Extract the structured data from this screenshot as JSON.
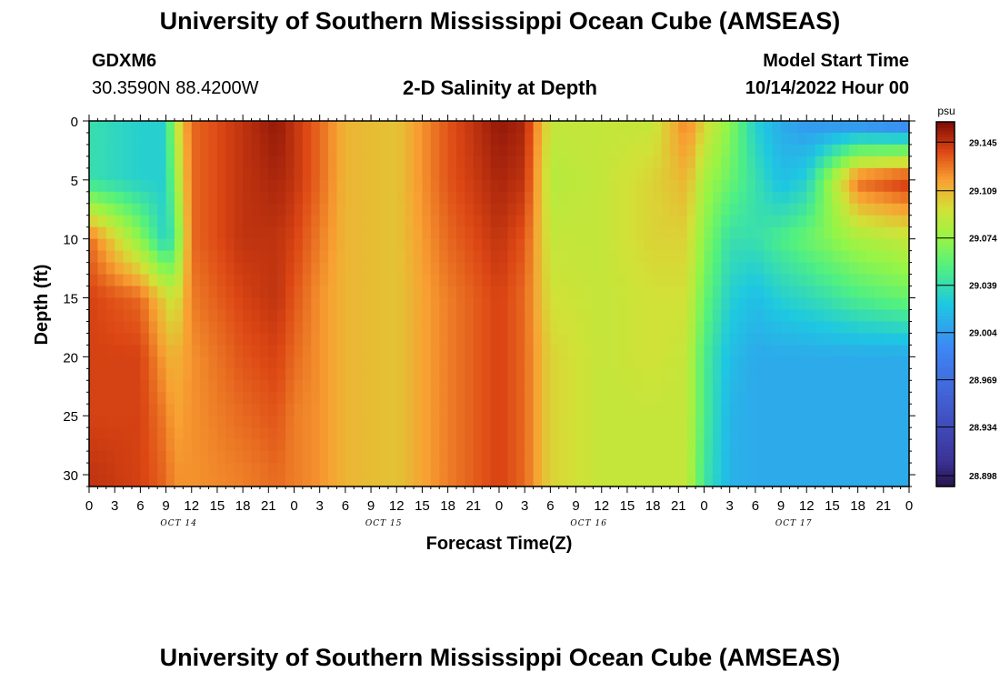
{
  "header": {
    "title": "University of Southern Mississippi Ocean Cube (AMSEAS)",
    "station": "GDXM6",
    "coords": "30.3590N  88.4200W",
    "plot_title": "2-D Salinity at Depth",
    "model_label": "Model Start Time",
    "model_time": "10/14/2022 Hour 00"
  },
  "footer": {
    "title": "University of Southern Mississippi Ocean Cube (AMSEAS)"
  },
  "chart_data": {
    "type": "heatmap",
    "title": "2-D Salinity at Depth",
    "xlabel": "Forecast Time(Z)",
    "ylabel": "Depth (ft)",
    "x_tick_labels": [
      "0",
      "3",
      "6",
      "9",
      "12",
      "15",
      "18",
      "21",
      "0",
      "3",
      "6",
      "9",
      "12",
      "15",
      "18",
      "21",
      "0",
      "3",
      "6",
      "9",
      "12",
      "15",
      "18",
      "21",
      "0",
      "3",
      "6",
      "9",
      "12",
      "15",
      "18",
      "21",
      "0"
    ],
    "day_labels": [
      "OCT 14",
      "OCT 15",
      "OCT 16",
      "OCT 17"
    ],
    "xlim_hours": [
      0,
      96
    ],
    "ylim": [
      0,
      31
    ],
    "y_ticks": [
      0,
      5,
      10,
      15,
      20,
      25,
      30
    ],
    "y_reversed": true,
    "colorbar": {
      "unit": "psu",
      "min": 28.89,
      "max": 29.16,
      "labels": [
        "29.145",
        "29.109",
        "29.074",
        "29.039",
        "29.004",
        "28.969",
        "28.934",
        "28.898"
      ],
      "label_values": [
        29.145,
        29.109,
        29.074,
        29.039,
        29.004,
        28.969,
        28.934,
        28.898
      ]
    },
    "depths_ft": [
      0,
      5,
      10,
      15,
      20,
      25,
      30
    ],
    "times_hours": [
      0,
      6,
      9,
      10,
      12,
      18,
      22,
      24,
      27,
      30,
      36,
      42,
      48,
      51,
      54,
      60,
      66,
      70,
      72,
      75,
      78,
      81,
      84,
      90,
      96
    ],
    "values_psu": [
      [
        29.04,
        29.03,
        29.03,
        29.085,
        29.13,
        29.145,
        29.155,
        29.145,
        29.13,
        29.11,
        29.105,
        29.135,
        29.155,
        29.15,
        29.09,
        29.09,
        29.09,
        29.125,
        29.1,
        29.07,
        29.03,
        29.01,
        29.0,
        28.99,
        28.98
      ],
      [
        29.04,
        29.03,
        29.03,
        29.07,
        29.13,
        29.145,
        29.15,
        29.145,
        29.13,
        29.11,
        29.105,
        29.135,
        29.15,
        29.145,
        29.085,
        29.09,
        29.1,
        29.11,
        29.08,
        29.06,
        29.04,
        29.02,
        29.03,
        29.13,
        29.145
      ],
      [
        29.13,
        29.07,
        29.03,
        29.05,
        29.13,
        29.145,
        29.145,
        29.14,
        29.125,
        29.11,
        29.105,
        29.13,
        29.145,
        29.135,
        29.09,
        29.09,
        29.1,
        29.1,
        29.07,
        29.04,
        29.04,
        29.05,
        29.06,
        29.08,
        29.09
      ],
      [
        29.14,
        29.13,
        29.1,
        29.09,
        29.125,
        29.14,
        29.145,
        29.135,
        29.12,
        29.11,
        29.105,
        29.125,
        29.14,
        29.13,
        29.095,
        29.09,
        29.095,
        29.095,
        29.06,
        29.03,
        29.02,
        29.03,
        29.035,
        29.05,
        29.06
      ],
      [
        29.14,
        29.14,
        29.115,
        29.11,
        29.12,
        29.135,
        29.14,
        29.13,
        29.12,
        29.11,
        29.105,
        29.125,
        29.14,
        29.13,
        29.1,
        29.09,
        29.095,
        29.09,
        29.05,
        29.02,
        29.01,
        29.01,
        29.01,
        29.01,
        29.01
      ],
      [
        29.14,
        29.14,
        29.125,
        29.115,
        29.12,
        29.13,
        29.135,
        29.125,
        29.12,
        29.11,
        29.105,
        29.125,
        29.14,
        29.13,
        29.1,
        29.09,
        29.09,
        29.09,
        29.05,
        29.015,
        29.01,
        29.01,
        29.01,
        29.01,
        29.01
      ],
      [
        29.145,
        29.14,
        29.13,
        29.12,
        29.12,
        29.125,
        29.13,
        29.125,
        29.12,
        29.11,
        29.105,
        29.125,
        29.14,
        29.13,
        29.1,
        29.09,
        29.09,
        29.09,
        29.045,
        29.015,
        29.01,
        29.01,
        29.01,
        29.01,
        29.01
      ]
    ]
  }
}
